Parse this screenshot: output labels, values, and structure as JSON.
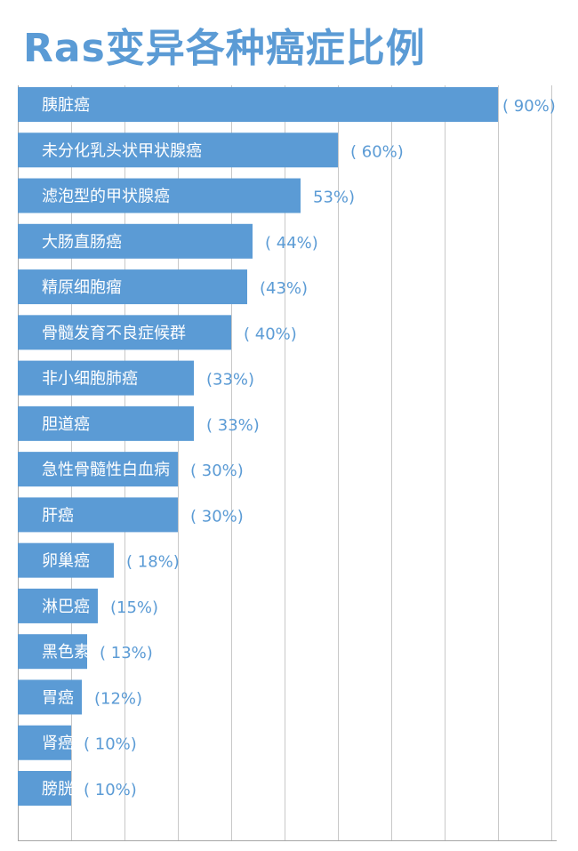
{
  "chart_data": {
    "type": "bar",
    "orientation": "horizontal",
    "title": "Ras变异各种癌症比例",
    "categories": [
      "胰脏癌",
      "未分化乳头状甲状腺癌",
      "滤泡型的甲状腺癌",
      "大肠直肠癌",
      "精原细胞瘤",
      "骨髓发育不良症候群",
      "非小细胞肺癌",
      "胆道癌",
      "急性骨髓性白血病",
      "肝癌",
      "卵巢癌",
      "淋巴癌",
      "黑色素细胞瘤",
      "胃癌",
      "肾癌",
      "膀胱癌"
    ],
    "values": [
      90,
      60,
      53,
      44,
      43,
      40,
      33,
      33,
      30,
      30,
      18,
      15,
      13,
      12,
      10,
      10
    ],
    "value_labels": [
      "( 90%)",
      "( 60%)",
      "53%)",
      "( 44%)",
      "(43%)",
      "( 40%)",
      "(33%)",
      "( 33%)",
      "( 30%)",
      "( 30%)",
      "( 18%)",
      "(15%)",
      "( 13%)",
      "(12%)",
      "( 10%)",
      "( 10%)"
    ],
    "xlim": [
      0,
      100
    ],
    "grid": true,
    "colors": {
      "bar": "#5b9bd5",
      "title": "#5b9bd5",
      "bar_text": "#ffffff",
      "value_text": "#5b9bd5",
      "grid": "#c8c8c8"
    }
  }
}
